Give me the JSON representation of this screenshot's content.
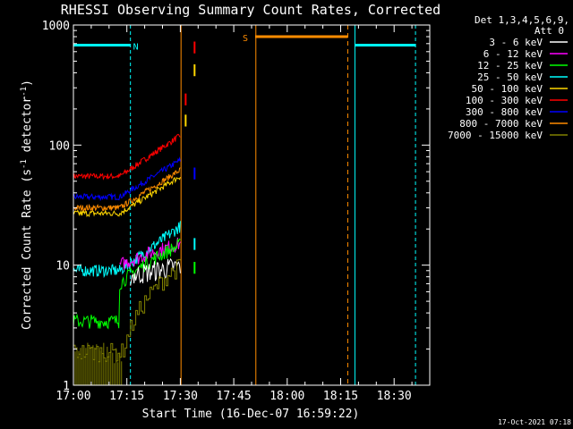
{
  "chart_data": {
    "type": "line",
    "title": "RHESSI Observing Summary Count Rates, Corrected",
    "xlabel": "Start Time (16-Dec-07 16:59:22)",
    "ylabel_main": "Corrected Count Rate (s",
    "ylabel_sup1": "-1",
    "ylabel_mid": " detector",
    "ylabel_sup2": "-1",
    "ylabel_end": ")",
    "y_scale": "log",
    "ylim": [
      1,
      1000
    ],
    "xlim_minutes": [
      0,
      100
    ],
    "x_ticks": [
      {
        "m": 0,
        "label": "17:00"
      },
      {
        "m": 15,
        "label": "17:15"
      },
      {
        "m": 30,
        "label": "17:30"
      },
      {
        "m": 45,
        "label": "17:45"
      },
      {
        "m": 60,
        "label": "18:00"
      },
      {
        "m": 75,
        "label": "18:15"
      },
      {
        "m": 90,
        "label": "18:30"
      }
    ],
    "y_ticks": [
      {
        "v": 1,
        "label": "1"
      },
      {
        "v": 10,
        "label": "10"
      },
      {
        "v": 100,
        "label": "100"
      },
      {
        "v": 1000,
        "label": "1000"
      }
    ],
    "legend_header": [
      "Det 1,3,4,5,6,9,",
      "Att 0"
    ],
    "legend_position": "right",
    "series": [
      {
        "name": "3 - 6 keV",
        "color": "#ffffff"
      },
      {
        "name": "6 - 12 keV",
        "color": "#ff00ff"
      },
      {
        "name": "12 - 25 keV",
        "color": "#00ff00"
      },
      {
        "name": "25 - 50 keV",
        "color": "#00ffff"
      },
      {
        "name": "50 - 100 keV",
        "color": "#ffd700"
      },
      {
        "name": "100 - 300 keV",
        "color": "#ff0000"
      },
      {
        "name": "300 - 800 keV",
        "color": "#0000ff"
      },
      {
        "name": "800 - 7000 keV",
        "color": "#ff8c00"
      },
      {
        "name": "7000 - 15000 keV",
        "color": "#808000"
      }
    ],
    "bands": [
      {
        "label": "N",
        "color": "#00ffff",
        "start": -1,
        "end": 16,
        "value": 680
      },
      {
        "label": "",
        "color": "#00ffff",
        "start": 79,
        "end": 96,
        "value": 680
      },
      {
        "label": "S",
        "color": "#ff8c00",
        "start": 51,
        "end": 77,
        "value": 800
      }
    ],
    "timestamp": "17-Oct-2021 07:18"
  }
}
